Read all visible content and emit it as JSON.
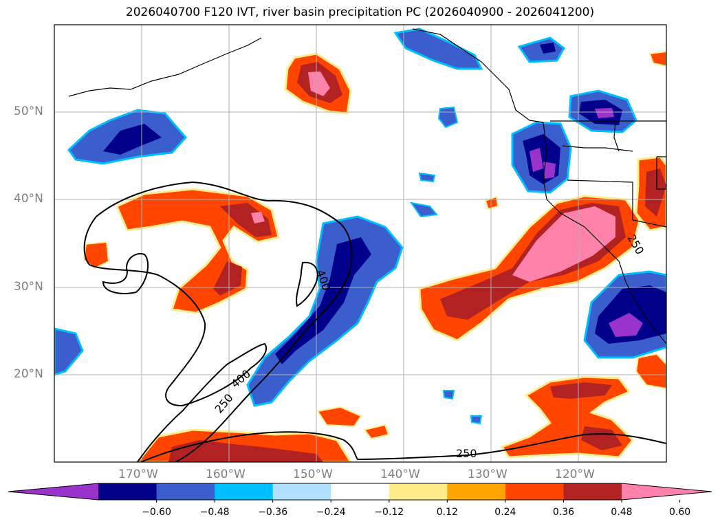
{
  "title": "2026040700 F120 IVT, river basin precipitation PC (2026040900 - 2026041200)",
  "map": {
    "lat_labels": [
      "50°N",
      "40°N",
      "30°N",
      "20°N"
    ],
    "lon_labels": [
      "170°W",
      "160°W",
      "150°W",
      "140°W",
      "130°W",
      "120°W"
    ],
    "contour_labels": [
      "400",
      "400",
      "250",
      "250",
      "250"
    ]
  },
  "colorbar": {
    "colors": [
      "#9933cc",
      "#00008b",
      "#3a5fcd",
      "#00bfff",
      "#b0e2ff",
      "#ffffff",
      "#ffec8b",
      "#ffa500",
      "#ff4500",
      "#b22222",
      "#ff82ab"
    ],
    "ticks": [
      "−0.60",
      "−0.48",
      "−0.36",
      "−0.24",
      "−0.12",
      "0.12",
      "0.24",
      "0.36",
      "0.48",
      "0.60"
    ]
  },
  "colors": {
    "frame": "#000000",
    "grid": "#b0b0b0",
    "coast": "#000000",
    "contour": "#000000"
  }
}
